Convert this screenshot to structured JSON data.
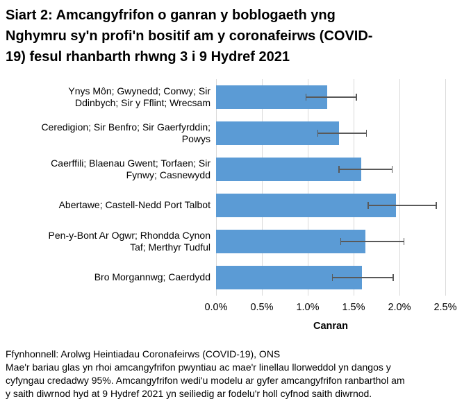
{
  "title": {
    "full": "Siart 2: Amcangyfrifon o ganran y boblogaeth yng Nghymru sy'n profi'n bositif am y coronafeirws (COVID-19) fesul rhanbarth rhwng 3 i 9 Hydref 2021",
    "lines": [
      "Siart 2: Amcangyfrifon o ganran y boblogaeth yng",
      "Nghymru sy'n profi'n bositif am y coronafeirws (COVID-",
      "19) fesul rhanbarth rhwng 3 i 9 Hydref 2021"
    ]
  },
  "chart_data": {
    "type": "bar",
    "orientation": "horizontal",
    "categories": [
      "Ynys Môn; Gwynedd; Conwy; Sir Ddinbych; Sir y Fflint; Wrecsam",
      "Ceredigion; Sir Benfro; Sir Gaerfyrddin; Powys",
      "Caerffili; Blaenau Gwent; Torfaen; Sir Fynwy; Casnewydd",
      "Abertawe; Castell-Nedd Port Talbot",
      "Pen-y-Bont Ar Ogwr; Rhondda Cynon Taf; Merthyr Tudful",
      "Bro Morgannwg; Caerdydd"
    ],
    "category_lines": [
      [
        "Ynys Môn; Gwynedd; Conwy; Sir",
        "Ddinbych; Sir y Fflint; Wrecsam"
      ],
      [
        "Ceredigion; Sir Benfro; Sir Gaerfyrddin;",
        "Powys"
      ],
      [
        "Caerffili; Blaenau Gwent; Torfaen; Sir",
        "Fynwy; Casnewydd"
      ],
      [
        "Abertawe; Castell-Nedd Port Talbot"
      ],
      [
        "Pen-y-Bont Ar Ogwr; Rhondda Cynon",
        "Taf; Merthyr Tudful"
      ],
      [
        "Bro Morgannwg; Caerdydd"
      ]
    ],
    "values": [
      1.21,
      1.34,
      1.58,
      1.96,
      1.63,
      1.59
    ],
    "ci_low": [
      0.98,
      1.11,
      1.34,
      1.66,
      1.36,
      1.27
    ],
    "ci_high": [
      1.53,
      1.64,
      1.92,
      2.4,
      2.05,
      1.93
    ],
    "xlabel": "Canran",
    "xlim": [
      0,
      2.5
    ],
    "xtick_labels": [
      "0.0%",
      "0.5%",
      "1.0%",
      "1.5%",
      "2.0%",
      "2.5%"
    ],
    "xtick_values": [
      0,
      0.5,
      1.0,
      1.5,
      2.0,
      2.5
    ],
    "grid": true,
    "legend": "none",
    "bar_color": "#5B9BD5",
    "error_bar_color": "#595959",
    "gridline_color": "#D9D9D9"
  },
  "footer": {
    "source": "Ffynhonnell: Arolwg Heintiadau Coronafeirws (COVID-19), ONS",
    "note": "Mae'r bariau glas yn rhoi amcangyfrifon pwyntiau ac mae'r linellau llorweddol yn dangos y cyfyngau credadwy 95%. Amcangyfrifon wedi'u modelu ar gyfer amcangyfrifon ranbarthol am y saith diwrnod hyd at 9 Hydref 2021 yn seiliedig ar fodelu'r holl cyfnod saith diwrnod.",
    "note_lines": [
      "Mae'r bariau glas yn rhoi amcangyfrifon pwyntiau ac mae'r linellau llorweddol yn dangos y",
      "cyfyngau credadwy 95%. Amcangyfrifon wedi'u modelu ar gyfer amcangyfrifon ranbarthol am",
      "y saith diwrnod hyd at 9 Hydref 2021 yn seiliedig ar fodelu'r holl cyfnod saith diwrnod."
    ]
  }
}
